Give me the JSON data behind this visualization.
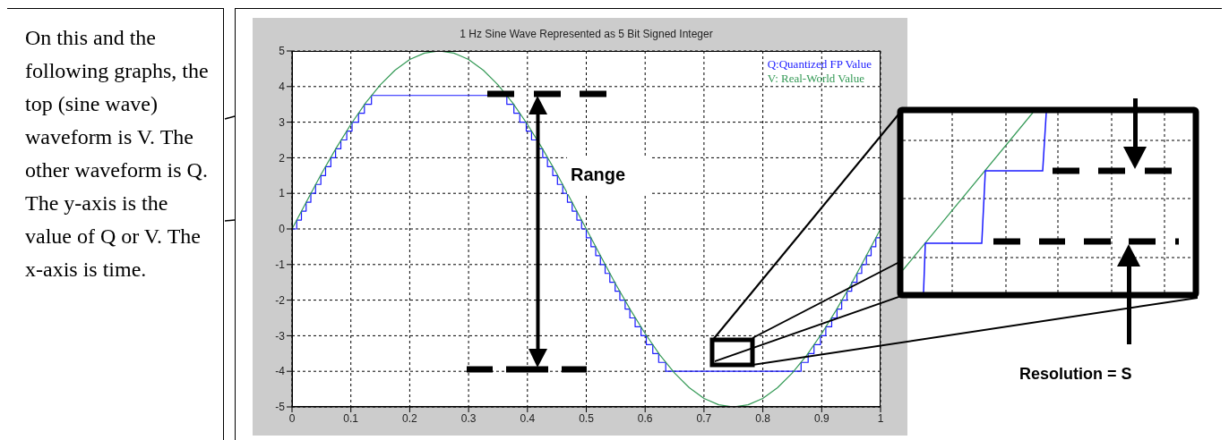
{
  "chart_data": {
    "type": "line",
    "title": "1 Hz Sine Wave Represented as 5 Bit Signed Integer",
    "xlim": [
      0,
      1
    ],
    "xticks": [
      0,
      0.1,
      0.2,
      0.3,
      0.4,
      0.5,
      0.6,
      0.7,
      0.8,
      0.9,
      1
    ],
    "ylim": [
      -5,
      5
    ],
    "yticks": [
      -5,
      -4,
      -3,
      -2,
      -1,
      0,
      1,
      2,
      3,
      4,
      5
    ],
    "grid": true,
    "legend": "top right",
    "series": [
      {
        "name": "Q:Quantized FP Value",
        "type": "step",
        "color": "#1a1aff",
        "x": [
          0,
          0.008,
          0.016,
          0.024,
          0.032,
          0.04,
          0.049,
          0.057,
          0.066,
          0.074,
          0.083,
          0.093,
          0.102,
          0.113,
          0.123,
          0.135,
          0.365,
          0.377,
          0.387,
          0.398,
          0.407,
          0.417,
          0.426,
          0.434,
          0.443,
          0.451,
          0.46,
          0.468,
          0.476,
          0.484,
          0.492,
          0.5,
          0.508,
          0.516,
          0.524,
          0.532,
          0.54,
          0.549,
          0.557,
          0.566,
          0.574,
          0.583,
          0.593,
          0.602,
          0.613,
          0.623,
          0.635,
          0.865,
          0.877,
          0.887,
          0.898,
          0.907,
          0.917,
          0.926,
          0.934,
          0.943,
          0.951,
          0.96,
          0.968,
          0.976,
          0.984,
          0.992,
          1
        ],
        "values": [
          0,
          0.25,
          0.5,
          0.75,
          1,
          1.25,
          1.5,
          1.75,
          2,
          2.25,
          2.5,
          2.75,
          3,
          3.25,
          3.5,
          3.75,
          3.5,
          3.25,
          3,
          2.75,
          2.5,
          2.25,
          2,
          1.75,
          1.5,
          1.25,
          1,
          0.75,
          0.5,
          0.25,
          0,
          -0.25,
          -0.5,
          -0.75,
          -1,
          -1.25,
          -1.5,
          -1.75,
          -2,
          -2.25,
          -2.5,
          -2.75,
          -3,
          -3.25,
          -3.5,
          -3.75,
          -4,
          -3.75,
          -3.5,
          -3.25,
          -3,
          -2.75,
          -2.5,
          -2.25,
          -2,
          -1.75,
          -1.5,
          -1.25,
          -1,
          -0.75,
          -0.5,
          -0.25,
          0
        ]
      },
      {
        "name": "V: Real-World Value",
        "type": "line",
        "color": "#339955",
        "x": [
          0,
          0.025,
          0.05,
          0.075,
          0.1,
          0.125,
          0.15,
          0.175,
          0.2,
          0.225,
          0.25,
          0.275,
          0.3,
          0.325,
          0.35,
          0.375,
          0.4,
          0.425,
          0.45,
          0.475,
          0.5,
          0.525,
          0.55,
          0.575,
          0.6,
          0.625,
          0.65,
          0.675,
          0.7,
          0.725,
          0.75,
          0.775,
          0.8,
          0.825,
          0.85,
          0.875,
          0.9,
          0.925,
          0.95,
          0.975,
          1
        ],
        "values": [
          0,
          0.78,
          1.55,
          2.27,
          2.94,
          3.54,
          4.05,
          4.46,
          4.76,
          4.94,
          5,
          4.94,
          4.76,
          4.46,
          4.05,
          3.54,
          2.94,
          2.27,
          1.55,
          0.78,
          0,
          -0.78,
          -1.55,
          -2.27,
          -2.94,
          -3.54,
          -4.05,
          -4.46,
          -4.76,
          -4.94,
          -5,
          -4.94,
          -4.76,
          -4.46,
          -4.05,
          -3.54,
          -2.94,
          -2.27,
          -1.55,
          -0.78,
          0
        ]
      }
    ],
    "annotations": [
      "On this and the following graphs, the top (sine wave) waveform is V. The other waveform is Q. The y-axis is the value of Q or V. The x-axis is time.",
      "Range",
      "Resolution = S"
    ]
  }
}
